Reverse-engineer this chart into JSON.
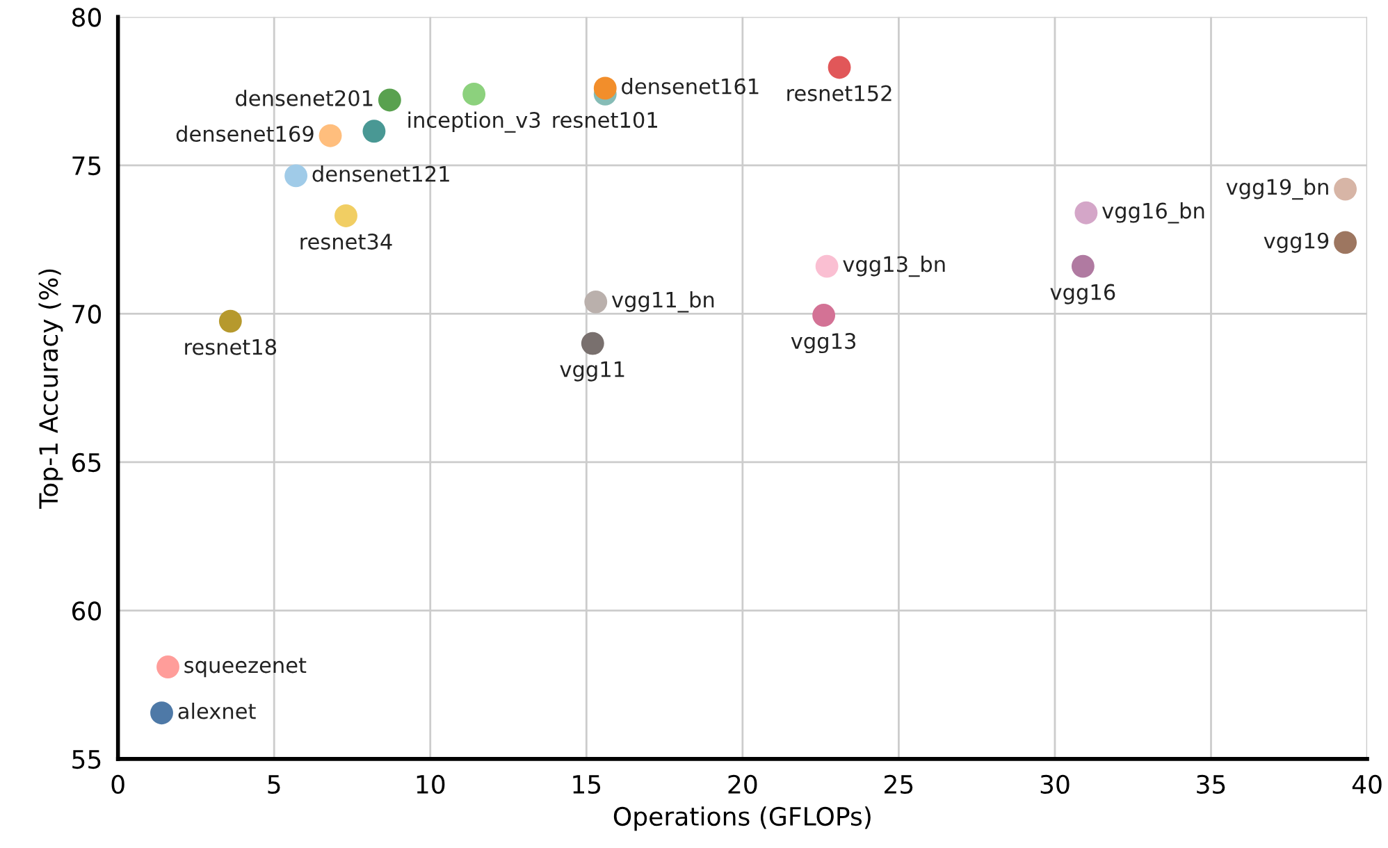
{
  "chart_data": {
    "type": "scatter",
    "xlabel": "Operations (GFLOPs)",
    "ylabel": "Top-1 Accuracy (%)",
    "xlim": [
      0,
      40
    ],
    "ylim": [
      55,
      80
    ],
    "xticks": [
      0,
      5,
      10,
      15,
      20,
      25,
      30,
      35,
      40
    ],
    "yticks": [
      55,
      60,
      65,
      70,
      75,
      80
    ],
    "grid": true,
    "legend": false,
    "marker": "circle",
    "series": [
      {
        "name": "densenet201",
        "color": "#59a14f",
        "x": [
          8.7
        ],
        "values": [
          77.2
        ]
      },
      {
        "name": "densenet169",
        "color": "#ffbe7d",
        "x": [
          6.8
        ],
        "values": [
          76.0
        ]
      },
      {
        "color": "#499894",
        "x": [
          8.2
        ],
        "values": [
          76.15
        ]
      },
      {
        "name": "inception_v3",
        "color": "#8cd17d",
        "x": [
          11.4
        ],
        "values": [
          77.4
        ]
      },
      {
        "name": "densenet121",
        "color": "#a0cbe8",
        "x": [
          5.7
        ],
        "values": [
          74.65
        ]
      },
      {
        "name": "resnet34",
        "color": "#f1ce63",
        "x": [
          7.3
        ],
        "values": [
          73.3
        ]
      },
      {
        "name": "resnet18",
        "color": "#b6992d",
        "x": [
          3.6
        ],
        "values": [
          69.75
        ]
      },
      {
        "name": "vgg11_bn",
        "color": "#bab0ac",
        "x": [
          15.3
        ],
        "values": [
          70.4
        ]
      },
      {
        "name": "vgg11",
        "color": "#79706e",
        "x": [
          15.2
        ],
        "values": [
          69.0
        ]
      },
      {
        "name": "densenet161",
        "color": "#f28e2b",
        "x": [
          15.6
        ],
        "values": [
          77.6
        ]
      },
      {
        "name": "resnet101",
        "color": "#86bcb6",
        "x": [
          15.6
        ],
        "values": [
          77.4
        ]
      },
      {
        "name": "resnet152",
        "color": "#e15759",
        "x": [
          23.1
        ],
        "values": [
          78.3
        ]
      },
      {
        "name": "vgg13_bn",
        "color": "#fabfd2",
        "x": [
          22.7
        ],
        "values": [
          71.6
        ]
      },
      {
        "name": "vgg13",
        "color": "#d37295",
        "x": [
          22.6
        ],
        "values": [
          69.95
        ]
      },
      {
        "name": "vgg16_bn",
        "color": "#d4a6c8",
        "x": [
          31.0
        ],
        "values": [
          73.4
        ]
      },
      {
        "name": "vgg16",
        "color": "#b07aa1",
        "x": [
          30.9
        ],
        "values": [
          71.6
        ]
      },
      {
        "name": "vgg19_bn",
        "color": "#d7b5a6",
        "x": [
          39.3
        ],
        "values": [
          74.2
        ]
      },
      {
        "name": "vgg19",
        "color": "#9d7660",
        "x": [
          39.3
        ],
        "values": [
          72.4
        ]
      },
      {
        "name": "squeezenet",
        "color": "#ff9d9a",
        "x": [
          1.6
        ],
        "values": [
          58.1
        ]
      },
      {
        "name": "alexnet",
        "color": "#4e79a7",
        "x": [
          1.4
        ],
        "values": [
          56.55
        ]
      }
    ]
  }
}
